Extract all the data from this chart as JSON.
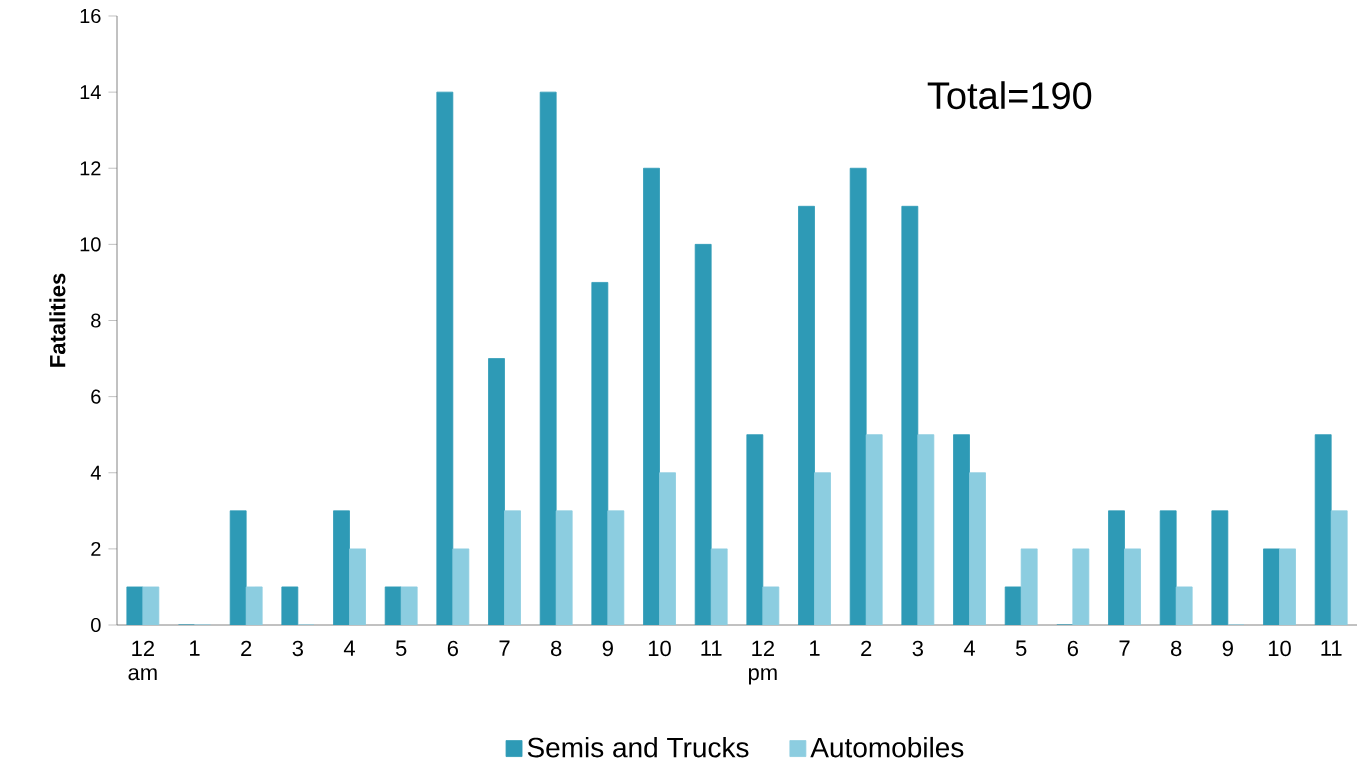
{
  "chart_data": {
    "type": "bar",
    "ylabel": "Fatalities",
    "categories": [
      "12 am",
      "1",
      "2",
      "3",
      "4",
      "5",
      "6",
      "7",
      "8",
      "9",
      "10",
      "11",
      "12 pm",
      "1",
      "2",
      "3",
      "4",
      "5",
      "6",
      "7",
      "8",
      "9",
      "10",
      "11"
    ],
    "series": [
      {
        "name": "Semis and Trucks",
        "color": "#2e9ab6",
        "values": [
          1,
          0,
          3,
          1,
          3,
          1,
          14,
          7,
          14,
          9,
          12,
          10,
          5,
          11,
          12,
          11,
          5,
          1,
          0,
          3,
          3,
          3,
          2,
          5
        ]
      },
      {
        "name": "Automobiles",
        "color": "#8ccde0",
        "values": [
          1,
          0,
          1,
          0,
          2,
          1,
          2,
          3,
          3,
          3,
          4,
          2,
          1,
          4,
          5,
          5,
          4,
          2,
          2,
          2,
          1,
          0,
          2,
          3
        ]
      }
    ],
    "ylim": [
      0,
      16
    ],
    "yticks": [
      0,
      2,
      4,
      6,
      8,
      10,
      12,
      14,
      16
    ],
    "legend": "bottom",
    "grid": false,
    "annotations": [
      "Total=190"
    ]
  }
}
